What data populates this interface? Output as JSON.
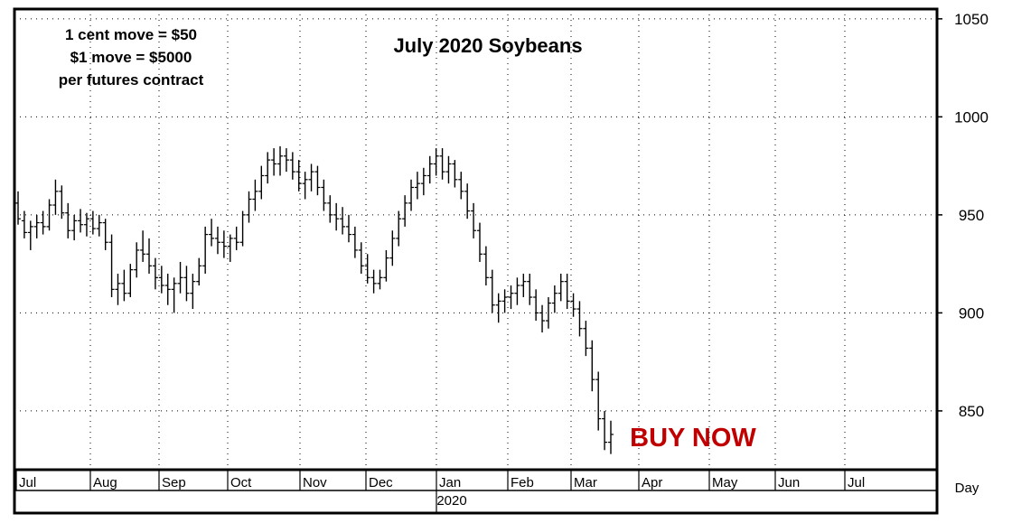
{
  "colors": {
    "background": "#ffffff",
    "bars": "#000000",
    "grid": "#000000",
    "callout": "#c00000"
  },
  "chart_data": {
    "type": "ohlc",
    "title": "July 2020 Soybeans",
    "notes": [
      "1 cent move = $50",
      "$1 move = $5000",
      "per futures contract"
    ],
    "callout": "BUY NOW",
    "year_label": "2020",
    "period_label": "Day",
    "ylim": [
      820,
      1055
    ],
    "yticks": [
      850,
      900,
      950,
      1000,
      1050
    ],
    "grid": true,
    "months": [
      "Jul",
      "Aug",
      "Sep",
      "Oct",
      "Nov",
      "Dec",
      "Jan",
      "Feb",
      "Mar",
      "Apr",
      "May",
      "Jun",
      "Jul"
    ],
    "bars": [
      [
        956,
        962,
        945,
        948
      ],
      [
        947,
        952,
        938,
        941
      ],
      [
        941,
        947,
        932,
        944
      ],
      [
        944,
        950,
        938,
        946
      ],
      [
        946,
        952,
        940,
        944
      ],
      [
        944,
        958,
        942,
        955
      ],
      [
        955,
        968,
        950,
        962
      ],
      [
        962,
        965,
        948,
        951
      ],
      [
        951,
        956,
        938,
        942
      ],
      [
        942,
        950,
        937,
        947
      ],
      [
        947,
        953,
        941,
        945
      ],
      [
        945,
        951,
        939,
        948
      ],
      [
        948,
        952,
        940,
        943
      ],
      [
        943,
        950,
        939,
        946
      ],
      [
        946,
        948,
        932,
        936
      ],
      [
        936,
        940,
        908,
        912
      ],
      [
        912,
        920,
        904,
        915
      ],
      [
        915,
        922,
        906,
        910
      ],
      [
        910,
        925,
        908,
        922
      ],
      [
        922,
        936,
        918,
        932
      ],
      [
        932,
        942,
        926,
        930
      ],
      [
        930,
        938,
        920,
        924
      ],
      [
        924,
        928,
        912,
        918
      ],
      [
        918,
        924,
        910,
        914
      ],
      [
        914,
        920,
        904,
        912
      ],
      [
        912,
        918,
        900,
        915
      ],
      [
        915,
        926,
        910,
        918
      ],
      [
        918,
        924,
        906,
        910
      ],
      [
        910,
        920,
        902,
        916
      ],
      [
        916,
        928,
        914,
        924
      ],
      [
        924,
        944,
        920,
        940
      ],
      [
        940,
        948,
        934,
        938
      ],
      [
        938,
        944,
        930,
        936
      ],
      [
        936,
        942,
        928,
        934
      ],
      [
        934,
        940,
        926,
        938
      ],
      [
        938,
        944,
        932,
        936
      ],
      [
        936,
        952,
        934,
        950
      ],
      [
        950,
        962,
        946,
        958
      ],
      [
        958,
        968,
        952,
        962
      ],
      [
        962,
        975,
        958,
        970
      ],
      [
        970,
        982,
        966,
        978
      ],
      [
        978,
        984,
        970,
        976
      ],
      [
        976,
        985,
        970,
        980
      ],
      [
        980,
        984,
        972,
        978
      ],
      [
        978,
        982,
        968,
        972
      ],
      [
        972,
        978,
        962,
        966
      ],
      [
        966,
        972,
        958,
        968
      ],
      [
        968,
        976,
        962,
        972
      ],
      [
        972,
        975,
        960,
        964
      ],
      [
        964,
        968,
        952,
        956
      ],
      [
        956,
        960,
        946,
        950
      ],
      [
        950,
        956,
        942,
        948
      ],
      [
        948,
        954,
        940,
        944
      ],
      [
        944,
        950,
        936,
        940
      ],
      [
        940,
        944,
        928,
        932
      ],
      [
        932,
        936,
        920,
        924
      ],
      [
        924,
        930,
        915,
        918
      ],
      [
        918,
        922,
        910,
        915
      ],
      [
        915,
        922,
        912,
        918
      ],
      [
        918,
        932,
        916,
        928
      ],
      [
        928,
        942,
        924,
        938
      ],
      [
        938,
        952,
        934,
        948
      ],
      [
        948,
        960,
        944,
        956
      ],
      [
        956,
        968,
        952,
        964
      ],
      [
        964,
        972,
        958,
        966
      ],
      [
        966,
        974,
        960,
        970
      ],
      [
        970,
        980,
        966,
        976
      ],
      [
        976,
        984,
        970,
        980
      ],
      [
        980,
        984,
        968,
        972
      ],
      [
        972,
        980,
        966,
        976
      ],
      [
        976,
        978,
        964,
        968
      ],
      [
        968,
        972,
        958,
        962
      ],
      [
        962,
        966,
        948,
        952
      ],
      [
        952,
        956,
        938,
        942
      ],
      [
        942,
        946,
        926,
        930
      ],
      [
        930,
        934,
        914,
        918
      ],
      [
        918,
        922,
        900,
        904
      ],
      [
        904,
        910,
        895,
        906
      ],
      [
        906,
        912,
        900,
        908
      ],
      [
        908,
        914,
        902,
        910
      ],
      [
        910,
        918,
        904,
        914
      ],
      [
        914,
        920,
        908,
        916
      ],
      [
        916,
        920,
        904,
        908
      ],
      [
        908,
        912,
        896,
        900
      ],
      [
        900,
        904,
        890,
        896
      ],
      [
        896,
        908,
        892,
        905
      ],
      [
        905,
        914,
        900,
        910
      ],
      [
        910,
        920,
        906,
        916
      ],
      [
        916,
        920,
        902,
        906
      ],
      [
        906,
        910,
        898,
        902
      ],
      [
        902,
        906,
        888,
        892
      ],
      [
        892,
        896,
        878,
        882
      ],
      [
        882,
        886,
        860,
        866
      ],
      [
        866,
        870,
        840,
        846
      ],
      [
        846,
        850,
        830,
        834
      ],
      [
        834,
        845,
        828,
        838
      ]
    ]
  }
}
